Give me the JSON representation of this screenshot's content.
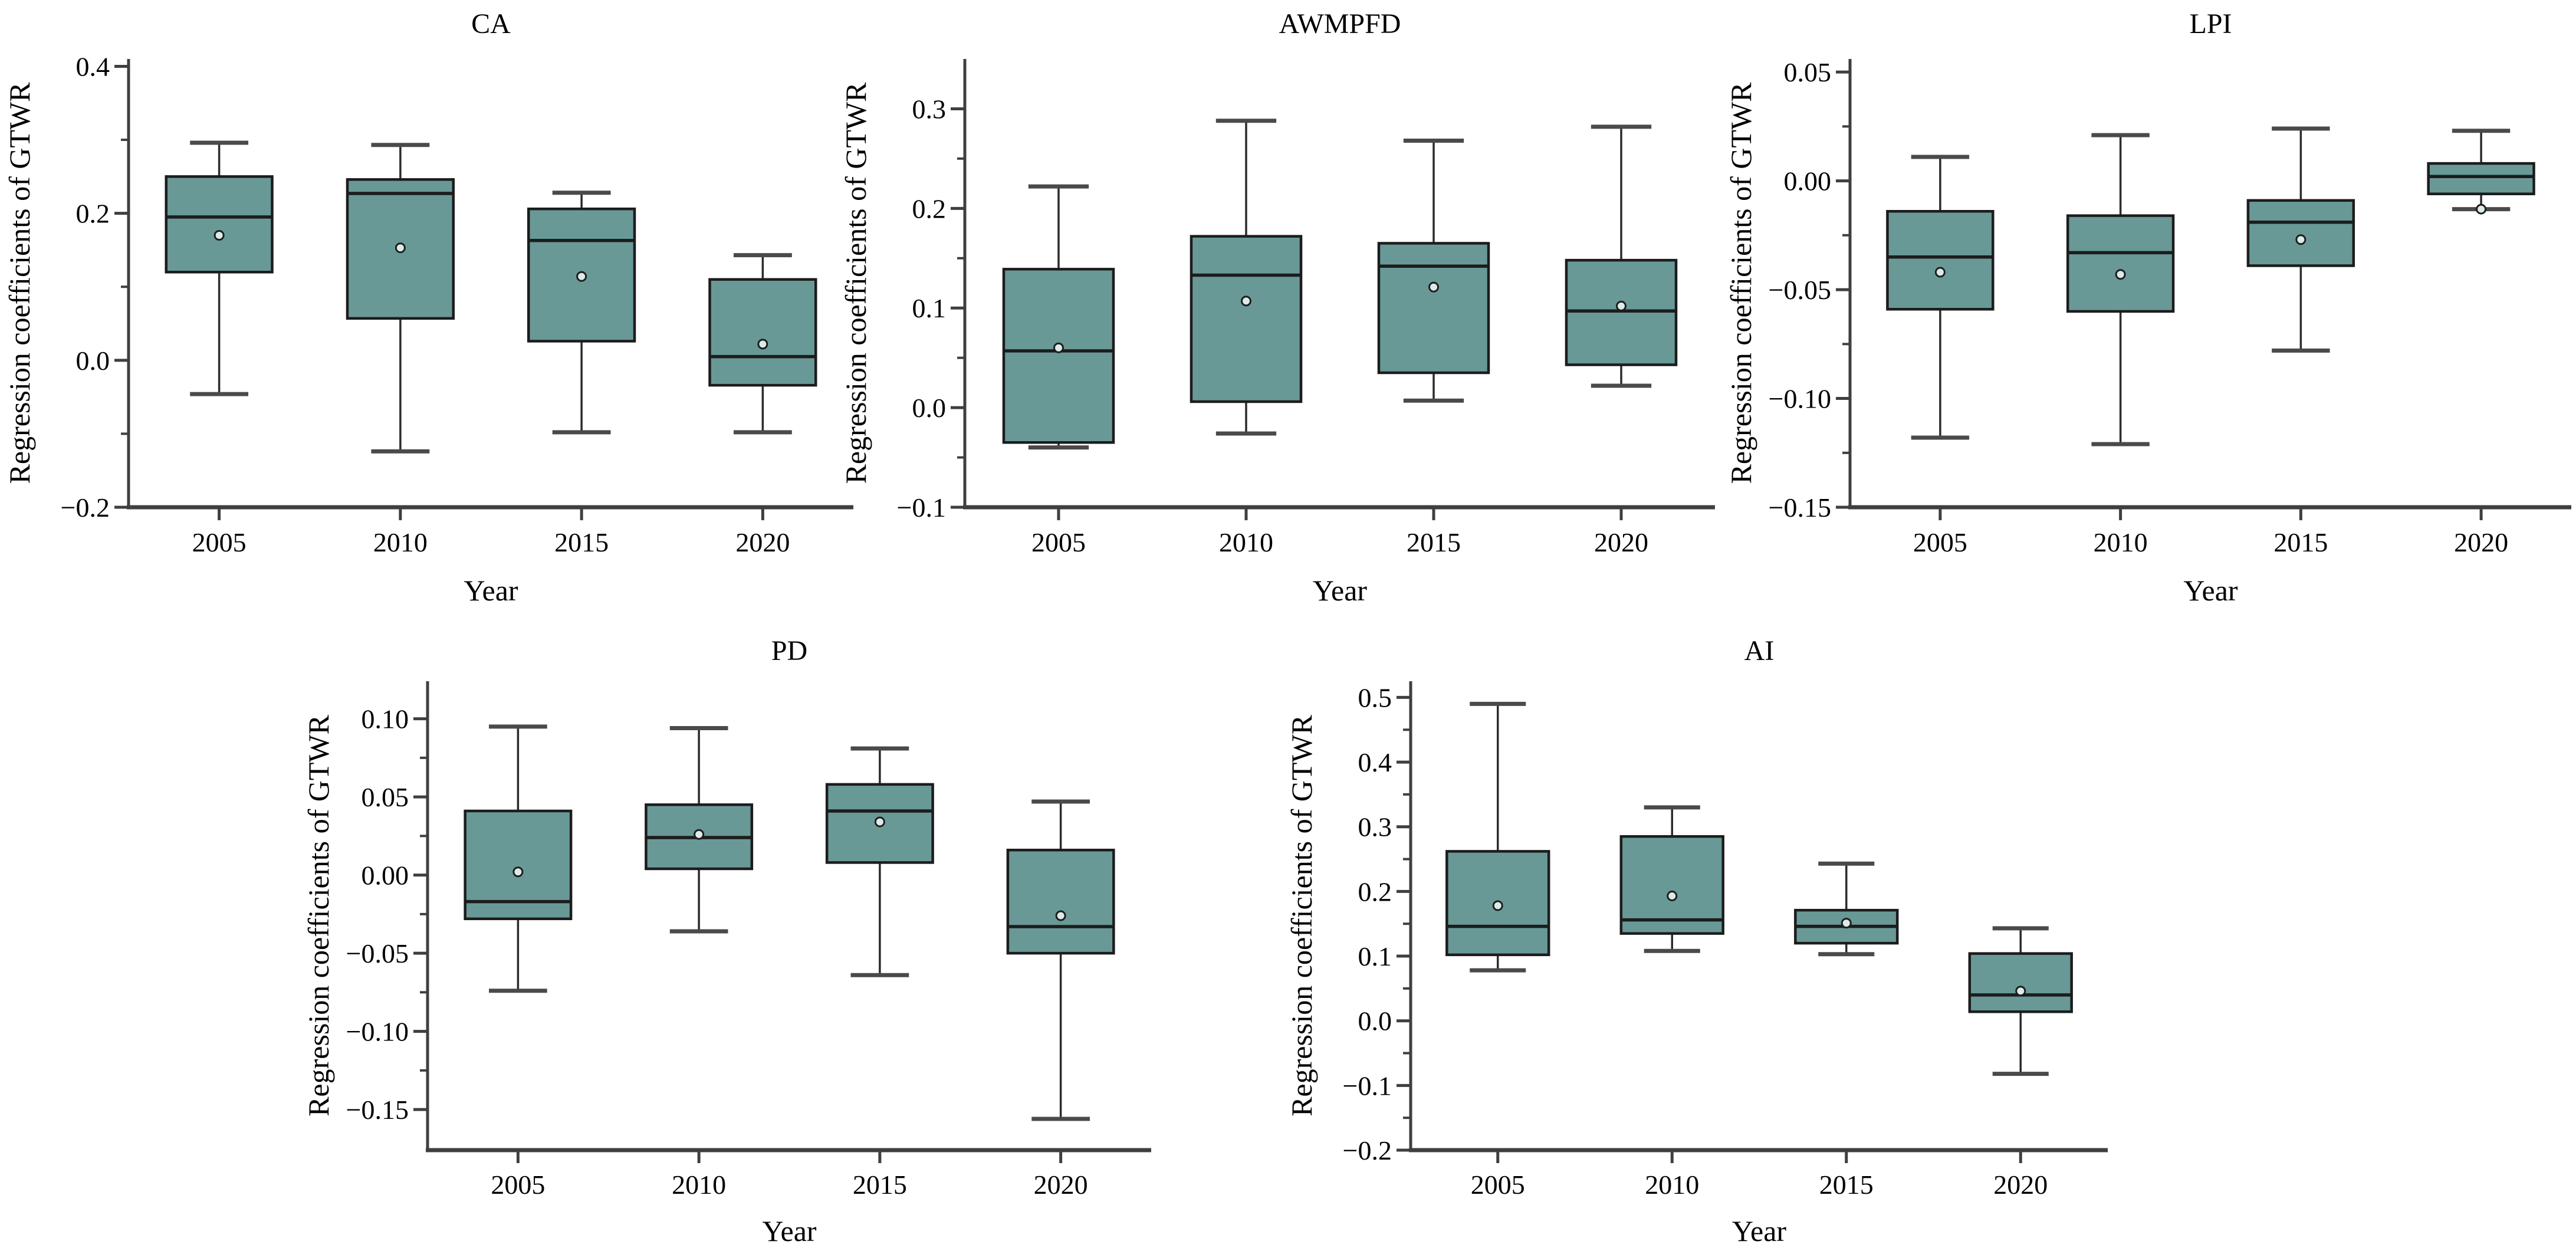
{
  "figure": {
    "ylabel": "Regression coefficients of GTWR",
    "xlabel": "Year",
    "categories": [
      "2005",
      "2010",
      "2015",
      "2020"
    ],
    "colors": {
      "background": "#ffffff",
      "box_fill": "#689996",
      "box_stroke": "#1c1c1c",
      "median_line": "#1c1c1c",
      "whisker_line": "#2b2b2b",
      "whisker_cap": "#4a4a4a",
      "axis": "#3f3f3f",
      "mean_marker_fill": "#dcebe9",
      "mean_marker_stroke": "#1e1e1e",
      "text": "#000000"
    }
  },
  "chart_data": [
    {
      "type": "box",
      "title": "CA",
      "xlabel": "Year",
      "ylabel": "Regression coefficients of GTWR",
      "categories": [
        "2005",
        "2010",
        "2015",
        "2020"
      ],
      "ylim": [
        -0.2,
        0.41
      ],
      "yticks": [
        0.4,
        0.2,
        0.0,
        -0.2
      ],
      "minor_step": 0.1,
      "decimals": 1,
      "legend": "none",
      "grid": false,
      "series": [
        {
          "year": "2005",
          "whisker_low": -0.046,
          "q1": 0.12,
          "median": 0.195,
          "mean": 0.17,
          "q3": 0.25,
          "whisker_high": 0.296
        },
        {
          "year": "2010",
          "whisker_low": -0.124,
          "q1": 0.057,
          "median": 0.227,
          "mean": 0.153,
          "q3": 0.246,
          "whisker_high": 0.293
        },
        {
          "year": "2015",
          "whisker_low": -0.098,
          "q1": 0.026,
          "median": 0.163,
          "mean": 0.114,
          "q3": 0.206,
          "whisker_high": 0.228
        },
        {
          "year": "2020",
          "whisker_low": -0.098,
          "q1": -0.034,
          "median": 0.005,
          "mean": 0.022,
          "q3": 0.11,
          "whisker_high": 0.143
        }
      ]
    },
    {
      "type": "box",
      "title": "AWMPFD",
      "xlabel": "Year",
      "ylabel": "Regression coefficients of GTWR",
      "categories": [
        "2005",
        "2010",
        "2015",
        "2020"
      ],
      "ylim": [
        -0.1,
        0.35
      ],
      "yticks": [
        0.3,
        0.2,
        0.1,
        0.0,
        -0.1
      ],
      "minor_step": 0.05,
      "decimals": 1,
      "legend": "none",
      "grid": false,
      "series": [
        {
          "year": "2005",
          "whisker_low": -0.04,
          "q1": -0.035,
          "median": 0.057,
          "mean": 0.06,
          "q3": 0.139,
          "whisker_high": 0.222
        },
        {
          "year": "2010",
          "whisker_low": -0.026,
          "q1": 0.006,
          "median": 0.133,
          "mean": 0.107,
          "q3": 0.172,
          "whisker_high": 0.288
        },
        {
          "year": "2015",
          "whisker_low": 0.007,
          "q1": 0.035,
          "median": 0.142,
          "mean": 0.121,
          "q3": 0.165,
          "whisker_high": 0.268
        },
        {
          "year": "2020",
          "whisker_low": 0.022,
          "q1": 0.043,
          "median": 0.097,
          "mean": 0.102,
          "q3": 0.148,
          "whisker_high": 0.282
        }
      ]
    },
    {
      "type": "box",
      "title": "LPI",
      "xlabel": "Year",
      "ylabel": "Regression coefficients of GTWR",
      "categories": [
        "2005",
        "2010",
        "2015",
        "2020"
      ],
      "ylim": [
        -0.15,
        0.056
      ],
      "yticks": [
        0.05,
        0.0,
        -0.05,
        -0.1,
        -0.15
      ],
      "minor_step": 0.025,
      "decimals": 2,
      "legend": "none",
      "grid": false,
      "series": [
        {
          "year": "2005",
          "whisker_low": -0.118,
          "q1": -0.059,
          "median": -0.035,
          "mean": -0.042,
          "q3": -0.014,
          "whisker_high": 0.011
        },
        {
          "year": "2010",
          "whisker_low": -0.121,
          "q1": -0.06,
          "median": -0.033,
          "mean": -0.043,
          "q3": -0.016,
          "whisker_high": 0.021
        },
        {
          "year": "2015",
          "whisker_low": -0.078,
          "q1": -0.039,
          "median": -0.019,
          "mean": -0.027,
          "q3": -0.009,
          "whisker_high": 0.024
        },
        {
          "year": "2020",
          "whisker_low": -0.013,
          "q1": -0.006,
          "median": 0.002,
          "mean": -0.013,
          "q3": 0.008,
          "whisker_high": 0.023
        }
      ]
    },
    {
      "type": "box",
      "title": "PD",
      "xlabel": "Year",
      "ylabel": "Regression coefficients of GTWR",
      "categories": [
        "2005",
        "2010",
        "2015",
        "2020"
      ],
      "ylim": [
        -0.176,
        0.124
      ],
      "yticks": [
        0.1,
        0.05,
        0.0,
        -0.05,
        -0.1,
        -0.15
      ],
      "minor_step": 0.025,
      "decimals": 2,
      "legend": "none",
      "grid": false,
      "series": [
        {
          "year": "2005",
          "whisker_low": -0.074,
          "q1": -0.028,
          "median": -0.017,
          "mean": 0.002,
          "q3": 0.041,
          "whisker_high": 0.095
        },
        {
          "year": "2010",
          "whisker_low": -0.036,
          "q1": 0.004,
          "median": 0.024,
          "mean": 0.026,
          "q3": 0.045,
          "whisker_high": 0.094
        },
        {
          "year": "2015",
          "whisker_low": -0.064,
          "q1": 0.008,
          "median": 0.041,
          "mean": 0.034,
          "q3": 0.058,
          "whisker_high": 0.081
        },
        {
          "year": "2020",
          "whisker_low": -0.156,
          "q1": -0.05,
          "median": -0.033,
          "mean": -0.026,
          "q3": 0.016,
          "whisker_high": 0.047
        }
      ]
    },
    {
      "type": "box",
      "title": "AI",
      "xlabel": "Year",
      "ylabel": "Regression coefficients of GTWR",
      "categories": [
        "2005",
        "2010",
        "2015",
        "2020"
      ],
      "ylim": [
        -0.2,
        0.525
      ],
      "yticks": [
        0.5,
        0.4,
        0.3,
        0.2,
        0.1,
        0.0,
        -0.1,
        -0.2
      ],
      "minor_step": 0.05,
      "decimals": 1,
      "legend": "none",
      "grid": false,
      "series": [
        {
          "year": "2005",
          "whisker_low": 0.078,
          "q1": 0.102,
          "median": 0.146,
          "mean": 0.178,
          "q3": 0.262,
          "whisker_high": 0.49
        },
        {
          "year": "2010",
          "whisker_low": 0.108,
          "q1": 0.135,
          "median": 0.156,
          "mean": 0.193,
          "q3": 0.285,
          "whisker_high": 0.33
        },
        {
          "year": "2015",
          "whisker_low": 0.103,
          "q1": 0.12,
          "median": 0.146,
          "mean": 0.151,
          "q3": 0.171,
          "whisker_high": 0.243
        },
        {
          "year": "2020",
          "whisker_low": -0.082,
          "q1": 0.014,
          "median": 0.04,
          "mean": 0.046,
          "q3": 0.104,
          "whisker_high": 0.143
        }
      ]
    }
  ]
}
